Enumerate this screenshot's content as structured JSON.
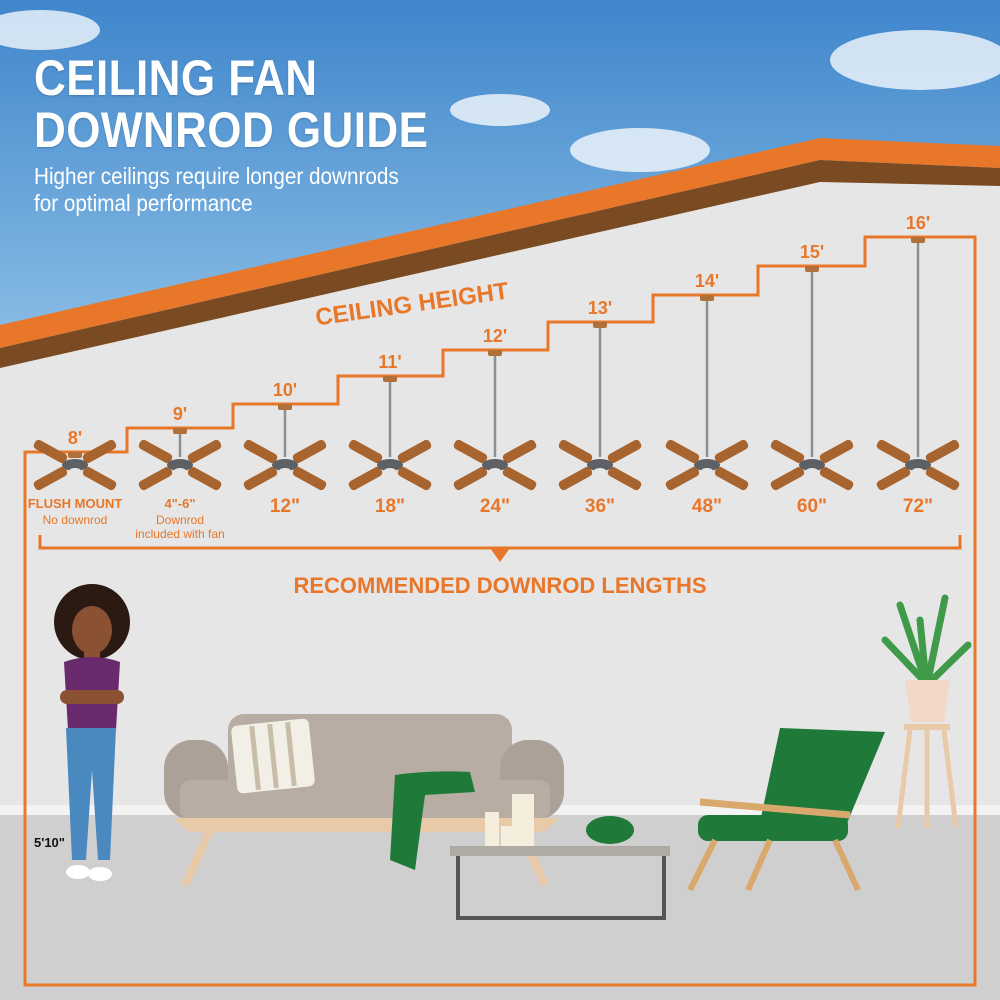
{
  "header": {
    "title_line1": "CEILING FAN",
    "title_line2": "DOWNROD GUIDE",
    "subtitle_line1": "Higher ceilings require longer downrods",
    "subtitle_line2": "for optimal performance"
  },
  "labels": {
    "ceiling_height": "CEILING HEIGHT",
    "recommended": "RECOMMENDED DOWNROD LENGTHS",
    "person_height": "5'10\""
  },
  "fans": [
    {
      "height": "8'",
      "downrod": "FLUSH MOUNT",
      "note1": "No downrod",
      "note2": ""
    },
    {
      "height": "9'",
      "downrod": "4\"-6\"",
      "note1": "Downrod",
      "note2": "included with fan"
    },
    {
      "height": "10'",
      "downrod": "12\"",
      "note1": "",
      "note2": ""
    },
    {
      "height": "11'",
      "downrod": "18\"",
      "note1": "",
      "note2": ""
    },
    {
      "height": "12'",
      "downrod": "24\"",
      "note1": "",
      "note2": ""
    },
    {
      "height": "13'",
      "downrod": "36\"",
      "note1": "",
      "note2": ""
    },
    {
      "height": "14'",
      "downrod": "48\"",
      "note1": "",
      "note2": ""
    },
    {
      "height": "15'",
      "downrod": "60\"",
      "note1": "",
      "note2": ""
    },
    {
      "height": "16'",
      "downrod": "72\"",
      "note1": "",
      "note2": ""
    }
  ],
  "colors": {
    "accent": "#e8772a",
    "sky": "#5a9bd5",
    "wall": "#e6e6e6",
    "floor": "#cfcfcf",
    "blade": "#a8642e",
    "sofa": "#b8ada3",
    "green": "#1f7a3a"
  }
}
